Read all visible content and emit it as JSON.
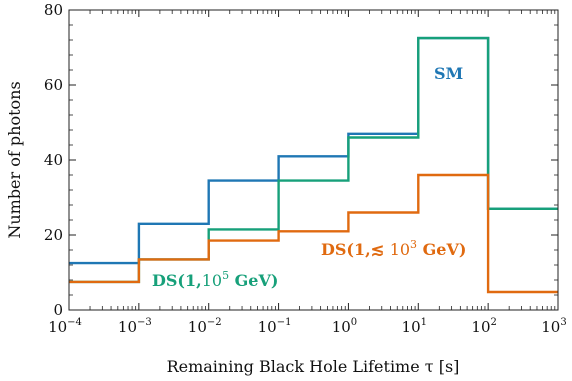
{
  "chart_data": {
    "type": "line",
    "step": true,
    "xscale": "log",
    "xlim": [
      -4,
      3
    ],
    "ylim": [
      0,
      80
    ],
    "x_ticks": [
      {
        "base": "10",
        "exp": "−4"
      },
      {
        "base": "10",
        "exp": "−3"
      },
      {
        "base": "10",
        "exp": "−2"
      },
      {
        "base": "10",
        "exp": "−1"
      },
      {
        "base": "10",
        "exp": "0"
      },
      {
        "base": "10",
        "exp": "1"
      },
      {
        "base": "10",
        "exp": "2"
      },
      {
        "base": "10",
        "exp": "3"
      }
    ],
    "y_ticks": [
      "0",
      "20",
      "40",
      "60",
      "80"
    ],
    "xlabel": "Remaining Black Hole Lifetime τ [s]",
    "ylabel": "Number of photons",
    "bin_edges": [
      -4,
      -3,
      -2,
      -1,
      0,
      1,
      2,
      3
    ],
    "series": [
      {
        "name": "SM",
        "color": "#1f77b4",
        "values": [
          12.5,
          23,
          34.5,
          41,
          47,
          72.5,
          27
        ]
      },
      {
        "name": "DS(1,10^5 GeV)",
        "color": "#17a07a",
        "values": [
          7.5,
          13.5,
          21.5,
          34.5,
          46,
          72.5,
          27
        ]
      },
      {
        "name": "DS(1,≲10^3 GeV)",
        "color": "#e06a10",
        "values": [
          7.5,
          13.5,
          18.5,
          21,
          26,
          36,
          4.8
        ]
      }
    ],
    "annotations": [
      {
        "text": "SM",
        "color": "#1f77b4"
      },
      {
        "prefix": "DS(1,",
        "base": "10",
        "exp": "5",
        "suffix": " GeV)",
        "color": "#17a07a"
      },
      {
        "prefix": "DS(1,≲ ",
        "base": "10",
        "exp": "3",
        "suffix": " GeV)",
        "color": "#e06a10"
      }
    ]
  }
}
